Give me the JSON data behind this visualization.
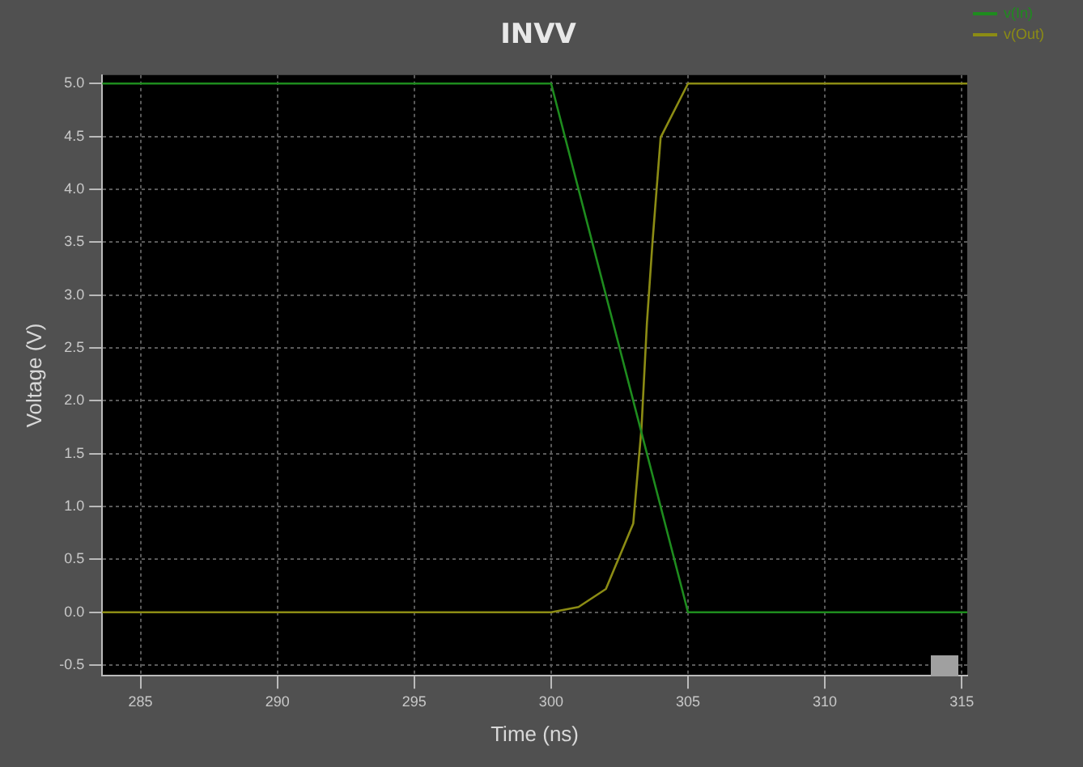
{
  "chart_data": {
    "type": "line",
    "title": "INVV",
    "xlabel": "Time (ns)",
    "ylabel": "Voltage (V)",
    "xlim": [
      283.6,
      315.2
    ],
    "ylim": [
      -0.6,
      5.08
    ],
    "xticks": [
      285,
      290,
      295,
      300,
      305,
      310,
      315
    ],
    "yticks": [
      {
        "value": -0.5,
        "label": "-0.5"
      },
      {
        "value": 0,
        "label": "0.0"
      },
      {
        "value": 0.5,
        "label": "0.5"
      },
      {
        "value": 1,
        "label": "1.0"
      },
      {
        "value": 1.5,
        "label": "1.5"
      },
      {
        "value": 2,
        "label": "2.0"
      },
      {
        "value": 2.5,
        "label": "2.5"
      },
      {
        "value": 3,
        "label": "3.0"
      },
      {
        "value": 3.5,
        "label": "3.5"
      },
      {
        "value": 4,
        "label": "4.0"
      },
      {
        "value": 4.5,
        "label": "4.5"
      },
      {
        "value": 5,
        "label": "5.0"
      }
    ],
    "grid": true,
    "legend": "top right",
    "marker": "none",
    "line_style": "solid",
    "series": [
      {
        "name": "v(In)",
        "color": "#1e8c1e",
        "x": [
          283.6,
          300,
          305,
          315.2
        ],
        "values": [
          5,
          5,
          0,
          0
        ]
      },
      {
        "name": "v(Out)",
        "color": "#8c8c14",
        "x": [
          283.6,
          300,
          301,
          302,
          303,
          303.3,
          303.5,
          303.7,
          304,
          305,
          315.2
        ],
        "values": [
          0,
          0,
          0.05,
          0.22,
          0.84,
          1.74,
          2.74,
          3.49,
          4.49,
          5,
          5
        ]
      }
    ]
  }
}
